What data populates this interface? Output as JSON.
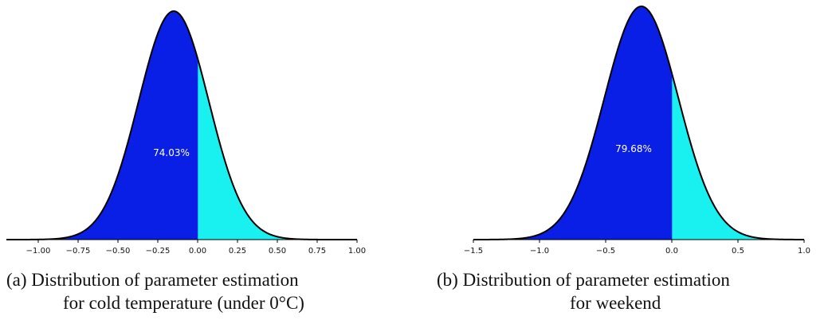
{
  "chart_data": [
    {
      "type": "area",
      "caption_line1": "(a)  Distribution of parameter estimation",
      "caption_line2": "for cold temperature (under 0°C)",
      "mean": -0.15,
      "sd": 0.22,
      "split_at": 0.0,
      "xlim": [
        -1.2,
        1.0
      ],
      "area_label": "74.03%",
      "x_ticks": [
        -1.0,
        -0.75,
        -0.5,
        -0.25,
        0.0,
        0.25,
        0.5,
        0.75,
        1.0
      ],
      "x_tick_labels": [
        "−1.00",
        "−0.75",
        "−0.50",
        "−0.25",
        "0.00",
        "0.25",
        "0.50",
        "0.75",
        "1.00"
      ],
      "colors": {
        "left": "#0a1fe6",
        "right": "#19f0f0"
      }
    },
    {
      "type": "area",
      "caption_line1": "(b) Distribution of parameter estimation",
      "caption_line2": "for weekend",
      "mean": -0.23,
      "sd": 0.28,
      "split_at": 0.0,
      "xlim": [
        -1.5,
        1.0
      ],
      "area_label": "79.68%",
      "x_ticks": [
        -1.5,
        -1.0,
        -0.5,
        0.0,
        0.5,
        1.0
      ],
      "x_tick_labels": [
        "−1.5",
        "−1.0",
        "−0.5",
        "0.0",
        "0.5",
        "1.0"
      ],
      "colors": {
        "left": "#0a1fe6",
        "right": "#19f0f0"
      }
    }
  ]
}
